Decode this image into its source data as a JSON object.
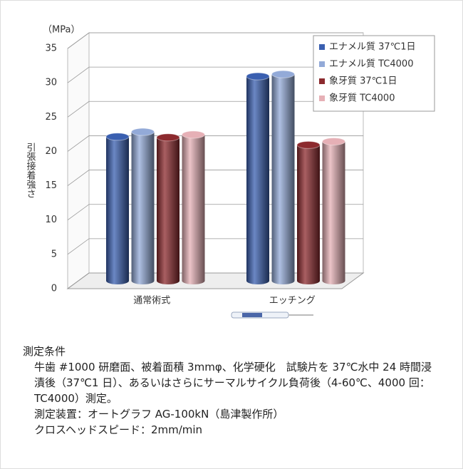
{
  "chart_data": {
    "type": "bar3d",
    "y_unit": "（MPa）",
    "ylabel": "引張接着強さ",
    "categories": [
      "通常術式",
      "エッチング"
    ],
    "series": [
      {
        "name": "エナメル質 37℃1日",
        "color": "#3a5fb0",
        "values": [
          21,
          29.8
        ]
      },
      {
        "name": "エナメル質 TC4000",
        "color": "#93aad8",
        "values": [
          21.7,
          30.1
        ]
      },
      {
        "name": "象牙質 37℃1日",
        "color": "#8c2a2e",
        "values": [
          20.9,
          19.8
        ]
      },
      {
        "name": "象牙質 TC4000",
        "color": "#e6b0b6",
        "values": [
          21.3,
          20.3
        ]
      }
    ],
    "ylim": [
      0,
      35
    ],
    "yticks": [
      0,
      5,
      10,
      15,
      20,
      25,
      30,
      35
    ],
    "grid": true,
    "legend": "top-right"
  },
  "notes": {
    "title": "測定条件",
    "lines": [
      "牛歯 #1000 研磨面、被着面積 3mmφ、化学硬化　試験片を 37℃水中 24 時間浸漬後（37℃1 日）、あるいはさらにサーマルサイクル負荷後（4-60℃、4000 回：TC4000）測定。",
      "測定装置：オートグラフ AG-100kN（島津製作所）",
      "クロスヘッドスピード：2mm/min"
    ]
  }
}
